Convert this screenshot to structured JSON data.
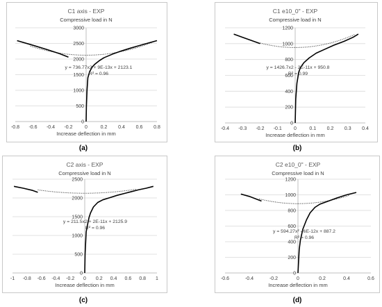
{
  "chart_data": [
    {
      "id": "a",
      "type": "line",
      "caption": "(a)",
      "title": "C1 axis - EXP",
      "ylabel": "Compressive load in N",
      "xlabel": "Increase deflection in mm",
      "xlim": [
        -0.8,
        0.8
      ],
      "ylim": [
        0,
        3000
      ],
      "xticks": [
        -0.8,
        -0.6,
        -0.4,
        -0.2,
        0,
        0.2,
        0.4,
        0.6,
        0.8
      ],
      "xtick_labels": [
        "-0.8",
        "-0.6",
        "-0.4",
        "-0.2",
        "0",
        "0.2",
        "0.4",
        "0.6",
        "0.8"
      ],
      "yticks": [
        0,
        500,
        1000,
        1500,
        2000,
        2500,
        3000
      ],
      "ytick_labels": [
        "0",
        "500",
        "1000",
        "1500",
        "2000",
        "2500",
        "3000"
      ],
      "equation": "y = 736.77x2 + 9E-13x + 2123.1",
      "r2": "R² = 0.96",
      "trend": {
        "a": 736.77,
        "b": 0,
        "c": 2123.1,
        "x": [
          -0.63,
          0.77
        ]
      },
      "series": [
        {
          "x": [
            -0.78,
            -0.6,
            -0.45,
            -0.3,
            -0.2
          ],
          "y": [
            2590,
            2440,
            2310,
            2170,
            2060
          ]
        },
        {
          "x": [
            0,
            0.003,
            0.01,
            0.02,
            0.04,
            0.07,
            0.1,
            0.15,
            0.2,
            0.3,
            0.4,
            0.5,
            0.6,
            0.7,
            0.8
          ],
          "y": [
            0,
            500,
            1000,
            1400,
            1600,
            1750,
            1840,
            1950,
            2040,
            2160,
            2260,
            2350,
            2430,
            2510,
            2590
          ]
        }
      ]
    },
    {
      "id": "b",
      "type": "line",
      "caption": "(b)",
      "title": "C1 e10_0\" - EXP",
      "ylabel": "Compressive load in N",
      "xlabel": "Increase deflection in mm",
      "xlim": [
        -0.4,
        0.4
      ],
      "ylim": [
        0,
        1200
      ],
      "xticks": [
        -0.4,
        -0.3,
        -0.2,
        -0.1,
        0,
        0.1,
        0.2,
        0.3,
        0.4
      ],
      "xtick_labels": [
        "-0.4",
        "-0.3",
        "-0.2",
        "-0.1",
        "0",
        "0.1",
        "0.2",
        "0.3",
        "0.4"
      ],
      "yticks": [
        0,
        200,
        400,
        600,
        800,
        1000,
        1200
      ],
      "ytick_labels": [
        "0",
        "200",
        "400",
        "600",
        "800",
        "1000",
        "1200"
      ],
      "equation": "y = 1426.7x2 - 2E-11x + 950.8",
      "r2": "R² = 0.99",
      "trend": {
        "a": 1426.7,
        "b": 0,
        "c": 950.8,
        "x": [
          -0.2,
          0.34
        ]
      },
      "series": [
        {
          "x": [
            -0.35,
            -0.3,
            -0.25,
            -0.2
          ],
          "y": [
            1120,
            1080,
            1040,
            1000
          ]
        },
        {
          "x": [
            0,
            0.003,
            0.01,
            0.02,
            0.03,
            0.05,
            0.08,
            0.12,
            0.17,
            0.22,
            0.28,
            0.33,
            0.36
          ],
          "y": [
            0,
            300,
            500,
            640,
            700,
            760,
            820,
            880,
            930,
            980,
            1030,
            1080,
            1120
          ]
        }
      ]
    },
    {
      "id": "c",
      "type": "line",
      "caption": "(c)",
      "title": "C2 axis - EXP",
      "ylabel": "Compressive load in N",
      "xlabel": "Increase deflection in mm",
      "xlim": [
        -1,
        1
      ],
      "ylim": [
        0,
        2500
      ],
      "xticks": [
        -1,
        -0.8,
        -0.6,
        -0.4,
        -0.2,
        0,
        0.2,
        0.4,
        0.6,
        0.8,
        1
      ],
      "xtick_labels": [
        "-1",
        "-0.8",
        "-0.6",
        "-0.4",
        "-0.2",
        "0",
        "0.2",
        "0.4",
        "0.6",
        "0.8",
        "1"
      ],
      "yticks": [
        0,
        500,
        1000,
        1500,
        2000,
        2500
      ],
      "ytick_labels": [
        "0",
        "500",
        "1000",
        "1500",
        "2000",
        "2500"
      ],
      "equation": "y = 211.5x2 + 2E-11x + 2125.9",
      "r2": "R² = 0.96",
      "trend": {
        "a": 211.5,
        "b": 0,
        "c": 2125.9,
        "x": [
          -0.65,
          0.72
        ]
      },
      "series": [
        {
          "x": [
            -0.98,
            -0.85,
            -0.72,
            -0.65
          ],
          "y": [
            2310,
            2260,
            2200,
            2150
          ]
        },
        {
          "x": [
            0,
            0.005,
            0.02,
            0.04,
            0.06,
            0.08,
            0.12,
            0.18,
            0.25,
            0.35,
            0.45,
            0.55,
            0.65,
            0.75,
            0.85,
            0.95
          ],
          "y": [
            0,
            500,
            1100,
            1300,
            1480,
            1600,
            1760,
            1880,
            1950,
            2010,
            2070,
            2120,
            2170,
            2220,
            2260,
            2310
          ]
        }
      ]
    },
    {
      "id": "d",
      "type": "line",
      "caption": "(d)",
      "title": "C2 e10_0\" - EXP",
      "ylabel": "Compressive load in N",
      "xlabel": "Increase deflection in mm",
      "xlim": [
        -0.6,
        0.6
      ],
      "ylim": [
        0,
        1200
      ],
      "xticks": [
        -0.6,
        -0.4,
        -0.2,
        0,
        0.2,
        0.4,
        0.6
      ],
      "xtick_labels": [
        "-0.6",
        "-0.4",
        "-0.2",
        "0",
        "0.2",
        "0.4",
        "0.6"
      ],
      "yticks": [
        0,
        200,
        400,
        600,
        800,
        1000,
        1200
      ],
      "ytick_labels": [
        "0",
        "200",
        "400",
        "600",
        "800",
        "1000",
        "1200"
      ],
      "equation": "y = 594.27x² - 6E-12x + 887.2",
      "r2": "R² = 0.96",
      "trend": {
        "a": 594.27,
        "b": 0,
        "c": 887.2,
        "x": [
          -0.32,
          0.42
        ]
      },
      "series": [
        {
          "x": [
            -0.47,
            -0.4,
            -0.35,
            -0.3
          ],
          "y": [
            1010,
            980,
            950,
            920
          ]
        },
        {
          "x": [
            0,
            0.005,
            0.01,
            0.02,
            0.04,
            0.07,
            0.1,
            0.14,
            0.18,
            0.25,
            0.32,
            0.4,
            0.48
          ],
          "y": [
            0,
            150,
            300,
            420,
            560,
            680,
            770,
            840,
            880,
            920,
            960,
            1000,
            1030
          ]
        }
      ]
    }
  ]
}
